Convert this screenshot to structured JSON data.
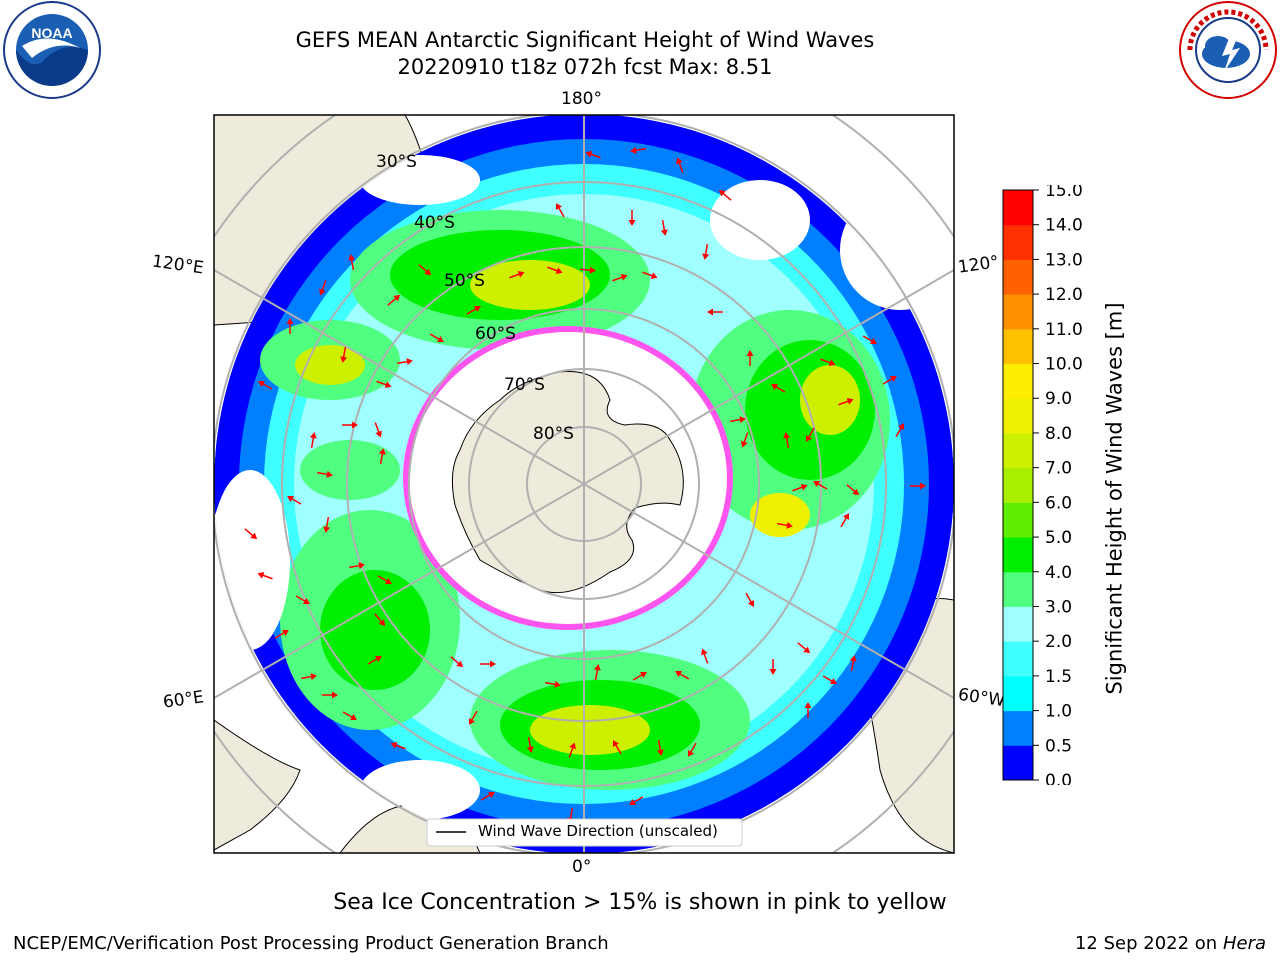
{
  "title_line1": "GEFS MEAN Antarctic Significant Height of Wind Waves",
  "title_line2": "20220910 t18z 072h fcst   Max: 8.51",
  "logos": {
    "left": "noaa-logo",
    "right": "nws-logo"
  },
  "map": {
    "lon_labels": {
      "top": "180°",
      "bottom": "0°",
      "left_upper": "120°E",
      "left_lower": "60°E",
      "right_upper": "120°",
      "right_lower": "60°W"
    },
    "lat_labels": [
      "30°S",
      "40°S",
      "50°S",
      "60°S",
      "70°S",
      "80°S"
    ],
    "legend": "Wind Wave Direction (unscaled)",
    "arrow_color": "#ff0000",
    "land_color": "#efebdc"
  },
  "colorbar": {
    "label": "Significant Height of Wind Waves [m]",
    "ticks": [
      "0.0",
      "0.5",
      "1.0",
      "1.5",
      "2.0",
      "3.0",
      "4.0",
      "5.0",
      "6.0",
      "7.0",
      "8.0",
      "9.0",
      "10.0",
      "11.0",
      "12.0",
      "13.0",
      "14.0",
      "15.0"
    ],
    "colors": [
      "#0000ff",
      "#0080ff",
      "#00ffff",
      "#40ffff",
      "#a0ffff",
      "#50ff80",
      "#00ee00",
      "#60ee00",
      "#a8ee00",
      "#ccf000",
      "#eef000",
      "#ffee00",
      "#ffc000",
      "#ff9000",
      "#ff6000",
      "#ff3000",
      "#ff0000"
    ]
  },
  "ice_note": "Sea Ice Concentration > 15% is shown in pink to yellow",
  "footer_left": "NCEP/EMC/Verification Post Processing Product Generation Branch",
  "footer_right_date": "12 Sep 2022 on",
  "footer_right_host": "Hera"
}
